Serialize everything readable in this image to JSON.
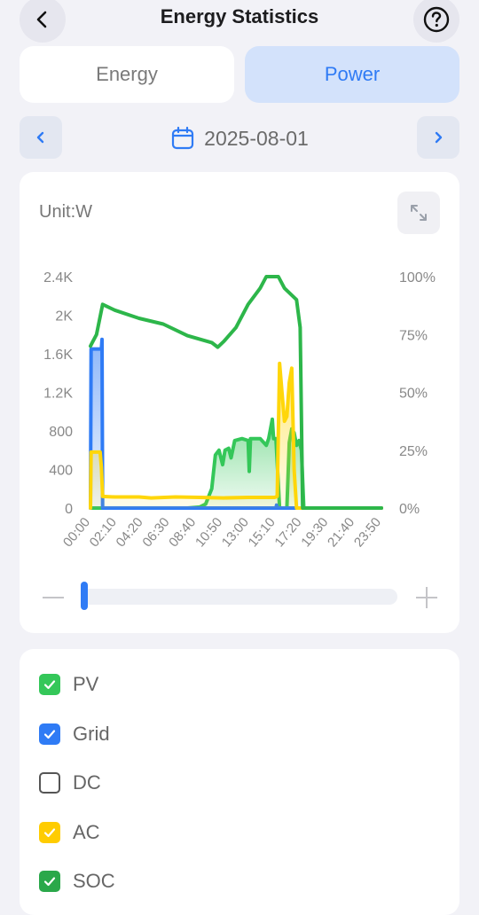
{
  "header": {
    "title": "Energy Statistics",
    "back_icon": "chevron-left-icon",
    "help_icon": "question-circle-icon"
  },
  "tabs": [
    {
      "label": "Energy",
      "active": false
    },
    {
      "label": "Power",
      "active": true
    }
  ],
  "date_nav": {
    "date": "2025-08-01",
    "prev_icon": "chevron-left-icon",
    "next_icon": "chevron-right-icon",
    "calendar_icon": "calendar-icon"
  },
  "chart_card": {
    "unit_label": "Unit:W",
    "expand_icon": "expand-icon",
    "zoom_minus": "—",
    "zoom_plus": "+"
  },
  "chart_data": {
    "type": "line",
    "left_axis": {
      "ticks": [
        "0",
        "400",
        "800",
        "1.2K",
        "1.6K",
        "2K",
        "2.4K"
      ],
      "ylim": [
        0,
        2400
      ]
    },
    "right_axis": {
      "ticks": [
        "0%",
        "25%",
        "50%",
        "75%",
        "100%"
      ],
      "ylim": [
        0,
        100
      ]
    },
    "x_ticks": [
      "00:00",
      "02:10",
      "04:20",
      "06:30",
      "08:40",
      "10:50",
      "13:00",
      "15:10",
      "17:20",
      "19:30",
      "21:40",
      "23:50"
    ],
    "series": [
      {
        "name": "PV",
        "axis": "left",
        "color": "#34c759",
        "fill": true,
        "points": [
          [
            0,
            0
          ],
          [
            8,
            0
          ],
          [
            9,
            10
          ],
          [
            9.5,
            40
          ],
          [
            10,
            200
          ],
          [
            10.3,
            550
          ],
          [
            10.6,
            600
          ],
          [
            10.9,
            450
          ],
          [
            11.1,
            600
          ],
          [
            11.4,
            620
          ],
          [
            11.6,
            520
          ],
          [
            11.9,
            700
          ],
          [
            12.5,
            720
          ],
          [
            13,
            700
          ],
          [
            13.1,
            380
          ],
          [
            13.2,
            720
          ],
          [
            14,
            720
          ],
          [
            14.5,
            650
          ],
          [
            14.7,
            720
          ],
          [
            15,
            920
          ],
          [
            15.1,
            720
          ],
          [
            15.3,
            720
          ],
          [
            15.6,
            0
          ],
          [
            16.2,
            0
          ],
          [
            16.4,
            680
          ],
          [
            16.6,
            820
          ],
          [
            16.8,
            780
          ],
          [
            17,
            650
          ],
          [
            17.2,
            700
          ],
          [
            17.4,
            600
          ],
          [
            17.6,
            0
          ],
          [
            24,
            0
          ]
        ]
      },
      {
        "name": "Grid",
        "axis": "left",
        "color": "#2f7bf5",
        "fill": true,
        "points": [
          [
            0,
            0
          ],
          [
            0.05,
            1650
          ],
          [
            0.9,
            1650
          ],
          [
            0.95,
            1750
          ],
          [
            1,
            0
          ],
          [
            15.3,
            0
          ],
          [
            15.35,
            30
          ],
          [
            15.4,
            0
          ],
          [
            24,
            0
          ]
        ]
      },
      {
        "name": "AC",
        "axis": "left",
        "color": "#ffd60a",
        "fill": true,
        "points": [
          [
            0,
            0
          ],
          [
            0.05,
            580
          ],
          [
            0.8,
            580
          ],
          [
            0.9,
            420
          ],
          [
            1,
            120
          ],
          [
            2,
            115
          ],
          [
            4,
            115
          ],
          [
            5,
            105
          ],
          [
            7,
            115
          ],
          [
            9,
            110
          ],
          [
            11,
            105
          ],
          [
            13,
            110
          ],
          [
            15.2,
            110
          ],
          [
            15.4,
            120
          ],
          [
            15.6,
            1500
          ],
          [
            15.8,
            1200
          ],
          [
            16,
            900
          ],
          [
            16.2,
            950
          ],
          [
            16.4,
            1300
          ],
          [
            16.6,
            1450
          ],
          [
            16.8,
            400
          ],
          [
            17,
            0
          ],
          [
            24,
            0
          ]
        ]
      },
      {
        "name": "SOC",
        "axis": "right",
        "color": "#2db64a",
        "fill": false,
        "points": [
          [
            0,
            70
          ],
          [
            0.2,
            72
          ],
          [
            0.5,
            75
          ],
          [
            1,
            88
          ],
          [
            2,
            85.5
          ],
          [
            4,
            82
          ],
          [
            6,
            79.5
          ],
          [
            8,
            74.5
          ],
          [
            10,
            71.5
          ],
          [
            10.5,
            69.5
          ],
          [
            11,
            72
          ],
          [
            12,
            78
          ],
          [
            13,
            88
          ],
          [
            14,
            95
          ],
          [
            14.5,
            100
          ],
          [
            15.5,
            100
          ],
          [
            16,
            95
          ],
          [
            17,
            90
          ],
          [
            17.3,
            78
          ],
          [
            17.5,
            0
          ],
          [
            24,
            0
          ]
        ]
      }
    ],
    "grid": false
  },
  "legend": [
    {
      "label": "PV",
      "checked": true,
      "color": "#34c759"
    },
    {
      "label": "Grid",
      "checked": true,
      "color": "#2f7bf5"
    },
    {
      "label": "DC",
      "checked": false,
      "color": "#555555"
    },
    {
      "label": "AC",
      "checked": true,
      "color": "#ffcc00"
    },
    {
      "label": "SOC",
      "checked": true,
      "color": "#2aa84a"
    }
  ]
}
